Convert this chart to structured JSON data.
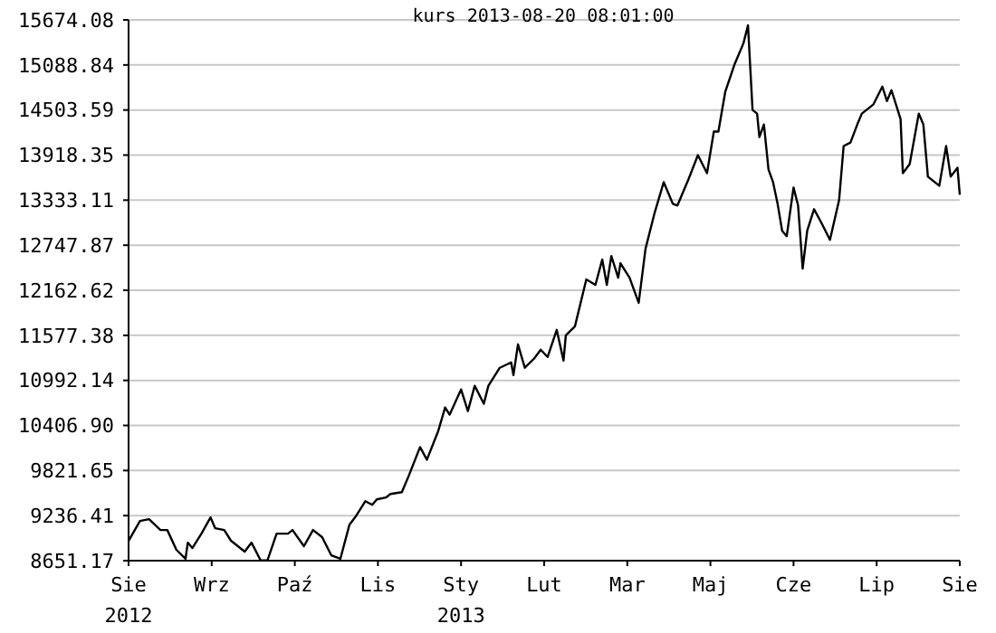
{
  "chart_data": {
    "type": "line",
    "title": "kurs  2013-08-20 08:01:00",
    "x": [
      "2012-08-20",
      "2012-08-25",
      "2012-08-29",
      "2012-09-03",
      "2012-09-06",
      "2012-09-10",
      "2012-09-14",
      "2012-09-15",
      "2012-09-17",
      "2012-09-21",
      "2012-09-25",
      "2012-09-27",
      "2012-10-01",
      "2012-10-04",
      "2012-10-10",
      "2012-10-13",
      "2012-10-17",
      "2012-10-20",
      "2012-10-24",
      "2012-10-29",
      "2012-10-31",
      "2012-11-05",
      "2012-11-09",
      "2012-11-13",
      "2012-11-17",
      "2012-11-21",
      "2012-11-25",
      "2012-11-28",
      "2012-12-02",
      "2012-12-05",
      "2012-12-07",
      "2012-12-11",
      "2012-12-13",
      "2012-12-18",
      "2012-12-21",
      "2012-12-26",
      "2012-12-29",
      "2013-01-03",
      "2013-01-06",
      "2013-01-08",
      "2013-01-13",
      "2013-01-16",
      "2013-01-19",
      "2013-01-23",
      "2013-01-25",
      "2013-01-30",
      "2013-02-04",
      "2013-02-05",
      "2013-02-07",
      "2013-02-10",
      "2013-02-14",
      "2013-02-17",
      "2013-02-20",
      "2013-02-24",
      "2013-02-27",
      "2013-02-28",
      "2013-03-04",
      "2013-03-09",
      "2013-03-13",
      "2013-03-16",
      "2013-03-18",
      "2013-03-20",
      "2013-03-23",
      "2013-03-24",
      "2013-03-28",
      "2013-04-01",
      "2013-04-04",
      "2013-04-08",
      "2013-04-12",
      "2013-04-16",
      "2013-04-18",
      "2013-04-23",
      "2013-04-27",
      "2013-05-01",
      "2013-05-04",
      "2013-05-06",
      "2013-05-09",
      "2013-05-13",
      "2013-05-17",
      "2013-05-19",
      "2013-05-21",
      "2013-05-23",
      "2013-05-24",
      "2013-05-26",
      "2013-05-28",
      "2013-05-30",
      "2013-06-01",
      "2013-06-03",
      "2013-06-05",
      "2013-06-08",
      "2013-06-10",
      "2013-06-12",
      "2013-06-14",
      "2013-06-17",
      "2013-06-20",
      "2013-06-24",
      "2013-06-28",
      "2013-06-30",
      "2013-07-03",
      "2013-07-06",
      "2013-07-08",
      "2013-07-13",
      "2013-07-17",
      "2013-07-19",
      "2013-07-21",
      "2013-07-25",
      "2013-07-26",
      "2013-07-29",
      "2013-08-02",
      "2013-08-04",
      "2013-08-06",
      "2013-08-11",
      "2013-08-14",
      "2013-08-16",
      "2013-08-19",
      "2013-08-20"
    ],
    "series": [
      {
        "color": "#000000",
        "values": [
          8909,
          9166,
          9190,
          9049,
          9049,
          8792,
          8675,
          8885,
          8815,
          9002,
          9213,
          9073,
          9049,
          8909,
          8768,
          8885,
          8655,
          8655,
          9002,
          9002,
          9049,
          8839,
          9049,
          8956,
          8721,
          8675,
          9119,
          9236,
          9424,
          9377,
          9447,
          9471,
          9517,
          9541,
          9751,
          10126,
          9962,
          10337,
          10641,
          10547,
          10875,
          10594,
          10922,
          10688,
          10922,
          11156,
          11226,
          11062,
          11460,
          11156,
          11273,
          11390,
          11296,
          11648,
          11250,
          11577,
          11694,
          12303,
          12233,
          12561,
          12233,
          12607,
          12326,
          12514,
          12326,
          11999,
          12701,
          13169,
          13567,
          13286,
          13263,
          13614,
          13918,
          13684,
          14223,
          14223,
          14738,
          15089,
          15370,
          15604,
          14504,
          14457,
          14152,
          14316,
          13731,
          13567,
          13286,
          12935,
          12865,
          13497,
          13263,
          12444,
          12935,
          13216,
          13052,
          12818,
          13333,
          14036,
          14082,
          14317,
          14457,
          14574,
          14808,
          14621,
          14761,
          14387,
          13684,
          13801,
          14457,
          14316,
          13638,
          13520,
          14036,
          13638,
          13754,
          13403
        ]
      }
    ],
    "xlim": [
      "2012-08-20",
      "2013-08-20"
    ],
    "xticks": [
      {
        "value": "2012-08-20",
        "label": "Sie\n2012"
      },
      {
        "value": "2012-09-25T12:00",
        "label": "Wrz"
      },
      {
        "value": "2012-11-01",
        "label": "Paź"
      },
      {
        "value": "2012-12-07T12:00",
        "label": "Lis"
      },
      {
        "value": "2013-01-13",
        "label": "Sty\n2013"
      },
      {
        "value": "2013-02-18T12:00",
        "label": "Lut"
      },
      {
        "value": "2013-03-27",
        "label": "Mar"
      },
      {
        "value": "2013-05-02T12:00",
        "label": "Maj"
      },
      {
        "value": "2013-06-08",
        "label": "Cze"
      },
      {
        "value": "2013-07-14T12:00",
        "label": "Lip"
      },
      {
        "value": "2013-08-20",
        "label": "Sie"
      }
    ],
    "ylim": [
      8651.17,
      15674.08
    ],
    "yticks": [
      8651.17,
      9236.41,
      9821.65,
      {
        "value": 10406.9,
        "label": "10406.90"
      },
      10992.14,
      11577.38,
      12162.62,
      12747.87,
      13333.11,
      13918.35,
      14503.59,
      15088.84,
      15674.08
    ],
    "grid": "y",
    "marker": "none",
    "line_style": "solid"
  }
}
